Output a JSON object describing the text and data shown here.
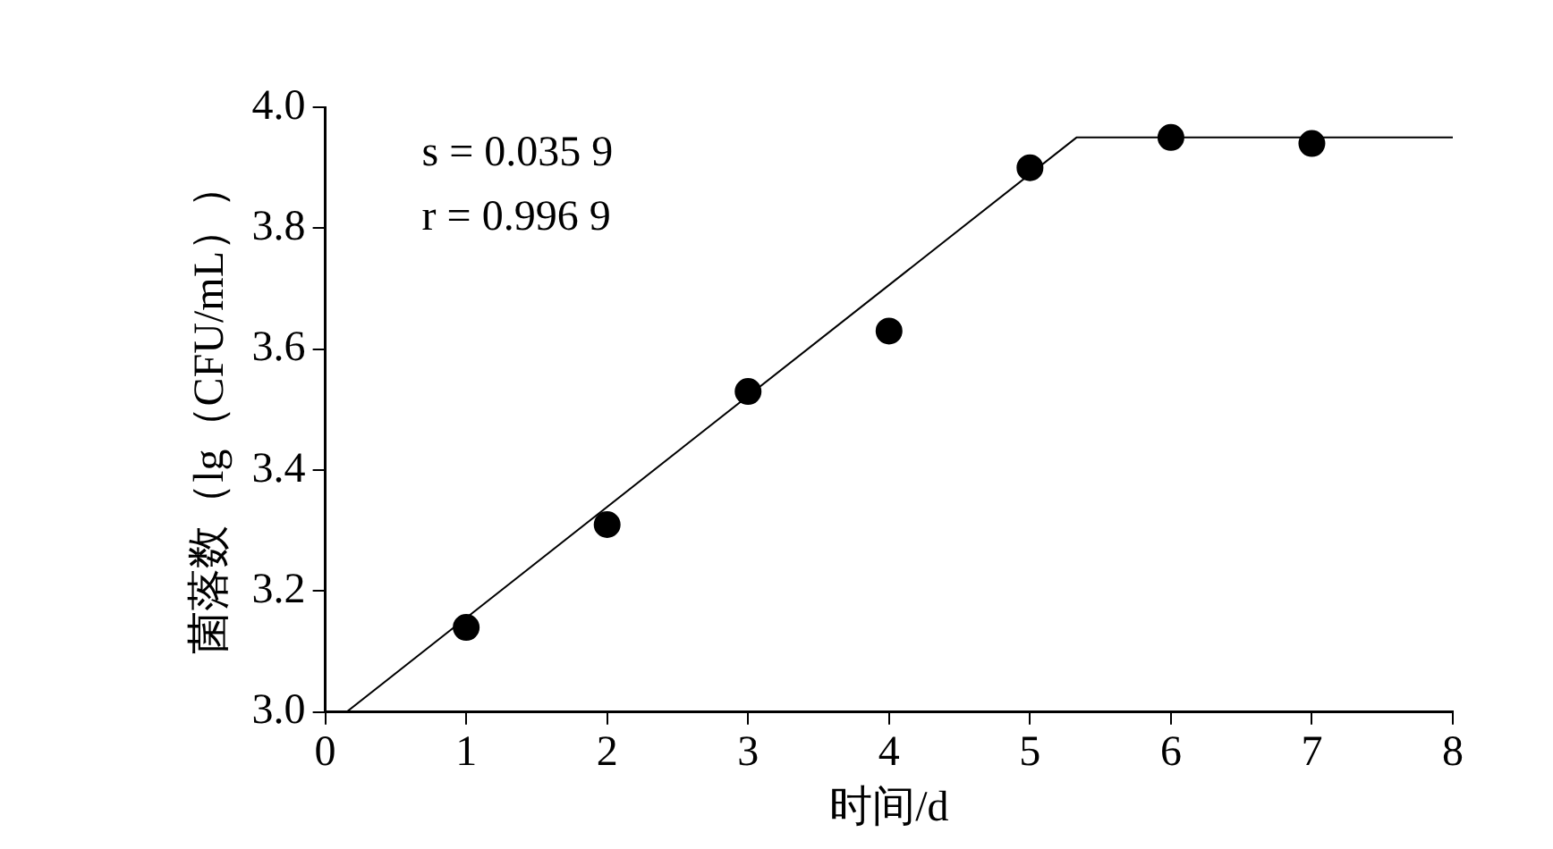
{
  "chart_data": {
    "type": "scatter",
    "xlabel": "时间/d",
    "ylabel": "菌落数（lg（CFU/mL））",
    "annotations": [
      "s = 0.035 9",
      "r = 0.996 9"
    ],
    "x": [
      1,
      2,
      3,
      4,
      5,
      6,
      7
    ],
    "series": [
      {
        "color": "#000000",
        "values": [
          3.14,
          3.31,
          3.53,
          3.63,
          3.9,
          3.95,
          3.94
        ]
      },
      {
        "type": "line",
        "color": "#000000",
        "x": [
          0.15,
          5.33,
          8
        ],
        "values": [
          3.0,
          3.95,
          3.95
        ],
        "marker": "none",
        "line_style": "solid"
      }
    ],
    "xlim": [
      0,
      8
    ],
    "xticks": [
      0,
      1,
      2,
      3,
      4,
      5,
      6,
      7,
      8
    ],
    "ylim": [
      3.0,
      4.0
    ],
    "yticks": [
      {
        "value": 3,
        "label": "3.0"
      },
      {
        "value": 3.2,
        "label": "3.2"
      },
      {
        "value": 3.4,
        "label": "3.4"
      },
      {
        "value": 3.6,
        "label": "3.6"
      },
      {
        "value": 3.8,
        "label": "3.8"
      },
      {
        "value": 4,
        "label": "4.0"
      }
    ],
    "grid": false,
    "legend": false,
    "marker": "circle"
  }
}
